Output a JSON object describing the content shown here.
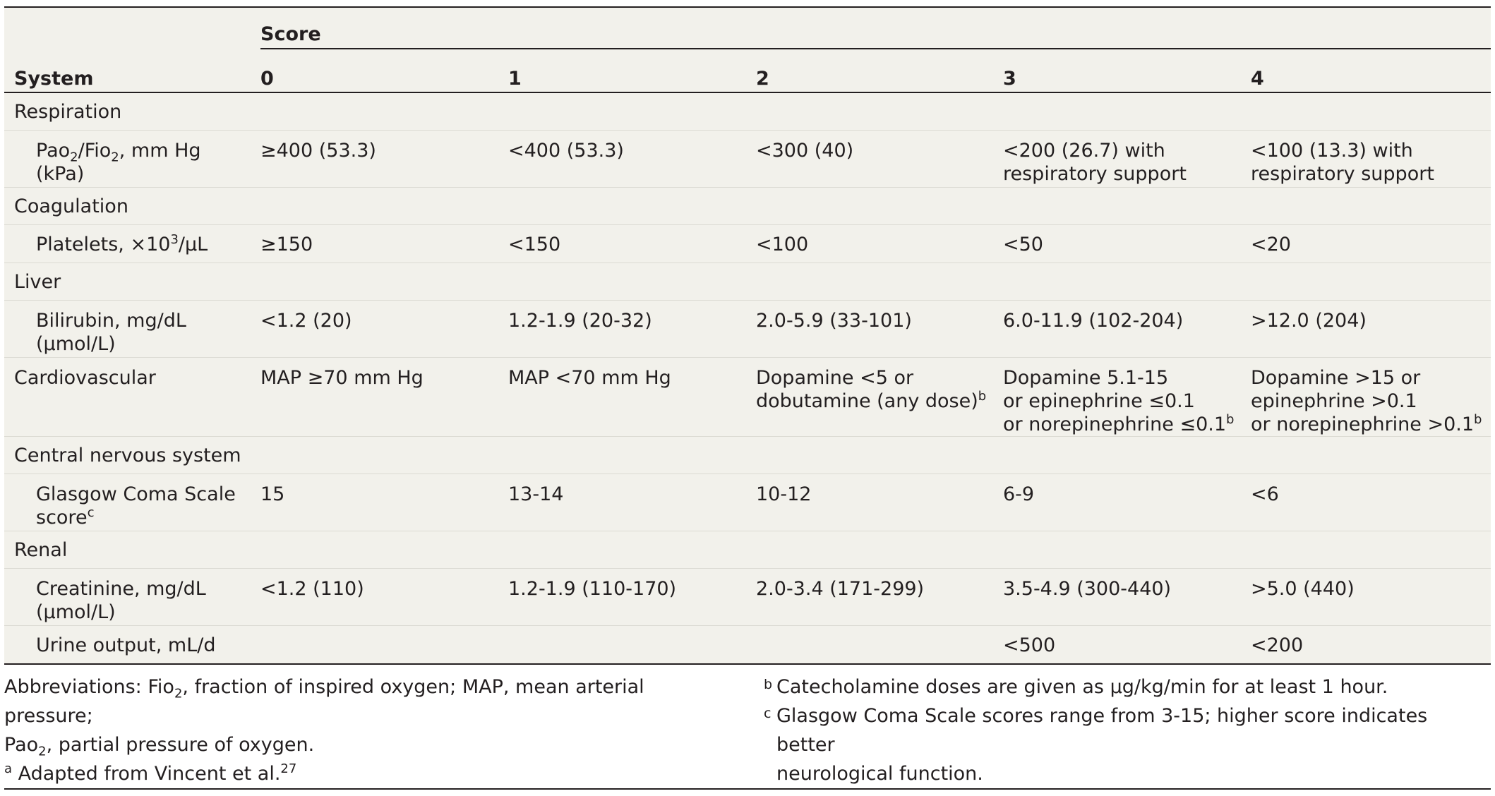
{
  "table": {
    "header": {
      "score_label": "Score",
      "system_label": "System",
      "scores": [
        "0",
        "1",
        "2",
        "3",
        "4"
      ]
    },
    "respiration": {
      "category": "Respiration",
      "pao2_label": "Pao",
      "pao2_sub": "2",
      "fio2_label": "/Fio",
      "fio2_sub": "2",
      "unit": ", mm Hg",
      "unit2": "(kPa)",
      "values": [
        "≥400 (53.3)",
        "<400 (53.3)",
        "<300 (40)",
        "<200 (26.7) with",
        "<100 (13.3) with"
      ],
      "values_line2": [
        "",
        "",
        "",
        "respiratory support",
        "respiratory support"
      ]
    },
    "coagulation": {
      "category": "Coagulation",
      "label": "Platelets, ×10",
      "label_sup": "3",
      "label_tail": "/μL",
      "values": [
        "≥150",
        "<150",
        "<100",
        "<50",
        "<20"
      ]
    },
    "liver": {
      "category": "Liver",
      "label": "Bilirubin, mg/dL",
      "label2": "(μmol/L)",
      "values": [
        "<1.2 (20)",
        "1.2-1.9 (20-32)",
        "2.0-5.9 (33-101)",
        "6.0-11.9 (102-204)",
        ">12.0 (204)"
      ]
    },
    "cardiovascular": {
      "category": "Cardiovascular",
      "v0": "MAP ≥70 mm Hg",
      "v1": "MAP <70 mm Hg",
      "v2_l1": "Dopamine <5 or",
      "v2_l2": "dobutamine (any dose)",
      "v3_l1": "Dopamine 5.1-15",
      "v3_l2": "or epinephrine ≤0.1",
      "v3_l3": "or norepinephrine ≤0.1",
      "v4_l1": "Dopamine >15 or",
      "v4_l2": "epinephrine >0.1",
      "v4_l3": "or norepinephrine >0.1",
      "note_mark": "b"
    },
    "cns": {
      "category": "Central nervous system",
      "label": "Glasgow Coma Scale",
      "label2": "score",
      "note_mark": "c",
      "values": [
        "15",
        "13-14",
        "10-12",
        "6-9",
        "<6"
      ]
    },
    "renal": {
      "category": "Renal",
      "creat_label": "Creatinine, mg/dL",
      "creat_label2": "(μmol/L)",
      "creat_values": [
        "<1.2 (110)",
        "1.2-1.9 (110-170)",
        "2.0-3.4 (171-299)",
        "3.5-4.9 (300-440)",
        ">5.0 (440)"
      ],
      "urine_label": "Urine output, mL/d",
      "urine_values": [
        "",
        "",
        "",
        "<500",
        "<200"
      ]
    }
  },
  "footnotes": {
    "abbr_1": "Abbreviations: ",
    "abbr_fio": "Fio",
    "abbr_fio_sub": "2",
    "abbr_2": ", fraction of inspired oxygen; MAP, mean arterial pressure;",
    "abbr_pao": "Pao",
    "abbr_pao_sub": "2",
    "abbr_3": ", partial pressure of oxygen.",
    "a_mark": "a",
    "a_text": "Adapted from Vincent et al.",
    "a_ref": "27",
    "b_mark": "b",
    "b_text": "Catecholamine doses are given as μg/kg/min for at least 1 hour.",
    "c_mark": "c",
    "c_text_1": "Glasgow Coma Scale scores range from 3-15; higher score indicates better",
    "c_text_2": "neurological function."
  }
}
